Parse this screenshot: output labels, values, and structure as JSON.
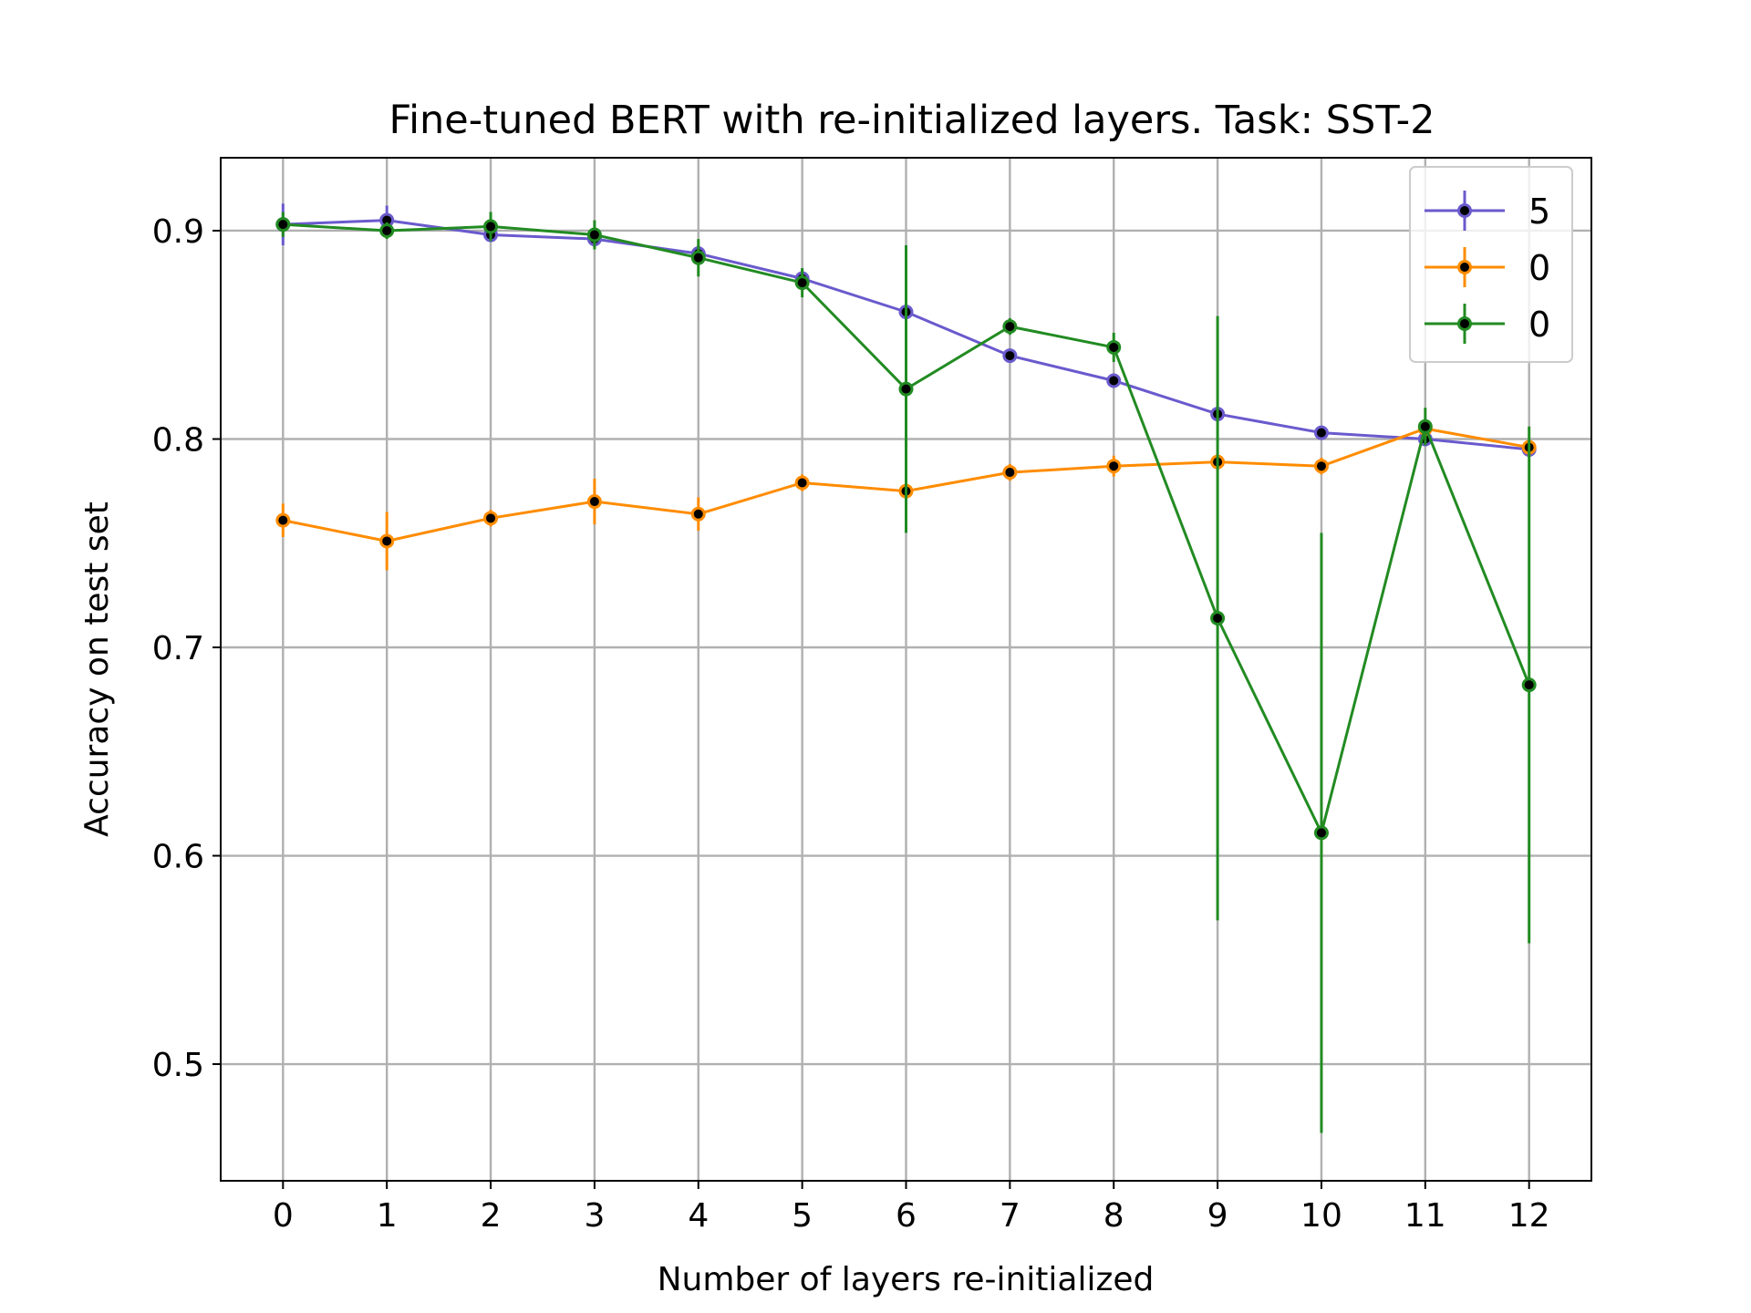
{
  "chart_data": {
    "type": "line",
    "title": "Fine-tuned BERT with re-initialized layers. Task: SST-2",
    "xlabel": "Number of layers re-initialized",
    "ylabel": "Accuracy on test set",
    "x": [
      0,
      1,
      2,
      3,
      4,
      5,
      6,
      7,
      8,
      9,
      10,
      11,
      12
    ],
    "xticks": [
      "0",
      "1",
      "2",
      "3",
      "4",
      "5",
      "6",
      "7",
      "8",
      "9",
      "10",
      "11",
      "12"
    ],
    "yticks": [
      "0.5",
      "0.6",
      "0.7",
      "0.8",
      "0.9"
    ],
    "ytick_values": [
      0.5,
      0.6,
      0.7,
      0.8,
      0.9
    ],
    "xlim": [
      -0.6,
      12.6
    ],
    "ylim": [
      0.444,
      0.935
    ],
    "grid": true,
    "legend_position": "top-right",
    "series": [
      {
        "name": "5",
        "color": "#6a5acd",
        "values": [
          0.903,
          0.905,
          0.898,
          0.896,
          0.889,
          0.877,
          0.861,
          0.84,
          0.828,
          0.812,
          0.803,
          0.8,
          0.795
        ],
        "errors": [
          0.01,
          0.007,
          0.003,
          0.004,
          0.004,
          0.005,
          0.003,
          0.002,
          0.002,
          0.002,
          0.003,
          0.002,
          0.002
        ]
      },
      {
        "name": "0",
        "color": "#ff8c00",
        "values": [
          0.761,
          0.751,
          0.762,
          0.77,
          0.764,
          0.779,
          0.775,
          0.784,
          0.787,
          0.789,
          0.787,
          0.805,
          0.796
        ],
        "errors": [
          0.008,
          0.014,
          0.004,
          0.011,
          0.008,
          0.004,
          0.005,
          0.004,
          0.005,
          0.004,
          0.004,
          0.004,
          0.004
        ]
      },
      {
        "name": "0",
        "color": "#228b22",
        "values": [
          0.903,
          0.9,
          0.902,
          0.898,
          0.887,
          0.875,
          0.824,
          0.854,
          0.844,
          0.714,
          0.611,
          0.806,
          0.682
        ],
        "errors": [
          0.006,
          0.004,
          0.007,
          0.007,
          0.009,
          0.007,
          0.069,
          0.004,
          0.007,
          0.145,
          0.144,
          0.009,
          0.124
        ]
      }
    ]
  }
}
